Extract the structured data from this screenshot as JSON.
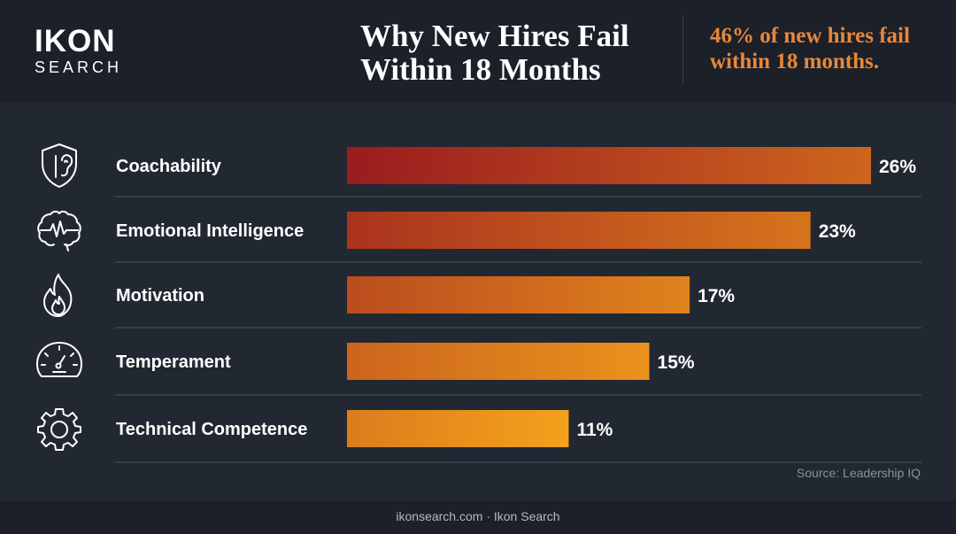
{
  "brand": {
    "name": "IKON",
    "tagline": "SEARCH"
  },
  "title": {
    "line1": "Why New Hires Fail",
    "line2": "Within 18 Months"
  },
  "headline": {
    "line1": "46% of new hires fail",
    "line2": "within 18 months."
  },
  "colors": {
    "accent": "#e8873a",
    "bar_start": "#9b1b1f",
    "bar_mid": "#d4521e",
    "bar_end": "#f5a21c",
    "background": "#222831",
    "header": "#1b2029"
  },
  "chart_data": {
    "type": "bar",
    "orientation": "horizontal",
    "categories": [
      "Coachability",
      "Emotional Intelligence",
      "Motivation",
      "Temperament",
      "Technical Competence"
    ],
    "values": [
      26,
      23,
      17,
      15,
      11
    ],
    "value_labels": [
      "26%",
      "23%",
      "17%",
      "15%",
      "11%"
    ],
    "icons": [
      "shield-ear-icon",
      "brain-icon",
      "flame-icon",
      "gauge-icon",
      "gear-icon"
    ],
    "unit": "%",
    "xlim": [
      0,
      26
    ],
    "grid": false
  },
  "source": "Source: Leadership IQ",
  "footer": "ikonsearch.com · Ikon Search"
}
